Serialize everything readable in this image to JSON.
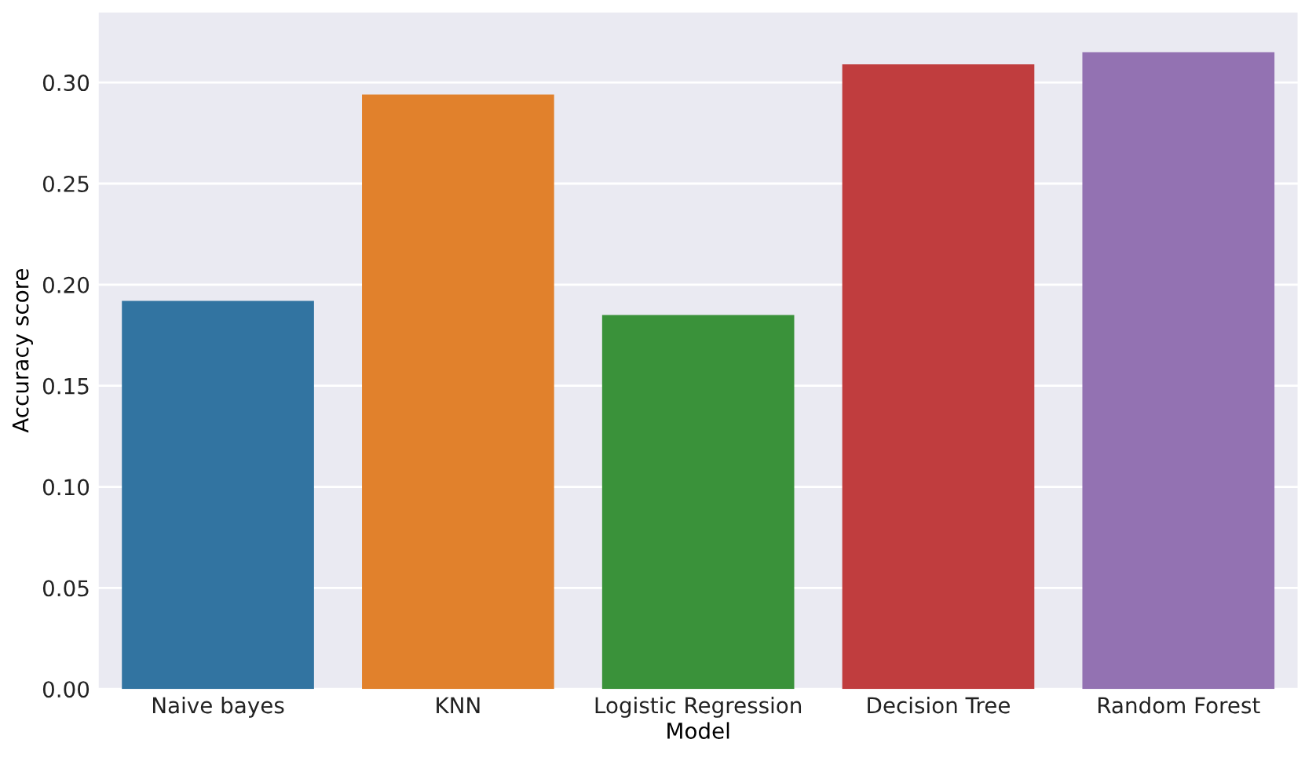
{
  "chart_data": {
    "type": "bar",
    "xlabel": "Model",
    "ylabel": "Accuracy score",
    "categories": [
      "Naive bayes",
      "KNN",
      "Logistic Regression",
      "Decision Tree",
      "Random Forest"
    ],
    "values": [
      0.192,
      0.294,
      0.185,
      0.309,
      0.315
    ],
    "colors": [
      "#3274a1",
      "#e1812c",
      "#3a923a",
      "#c03d3e",
      "#9372b2"
    ],
    "ylim": [
      0,
      0.335
    ],
    "yticks": [
      {
        "value": 0,
        "label": "0.00"
      },
      {
        "value": 0.05,
        "label": "0.05"
      },
      {
        "value": 0.1,
        "label": "0.10"
      },
      {
        "value": 0.15,
        "label": "0.15"
      },
      {
        "value": 0.2,
        "label": "0.20"
      },
      {
        "value": 0.25,
        "label": "0.25"
      },
      {
        "value": 0.3,
        "label": "0.30"
      }
    ],
    "grid": "y"
  }
}
